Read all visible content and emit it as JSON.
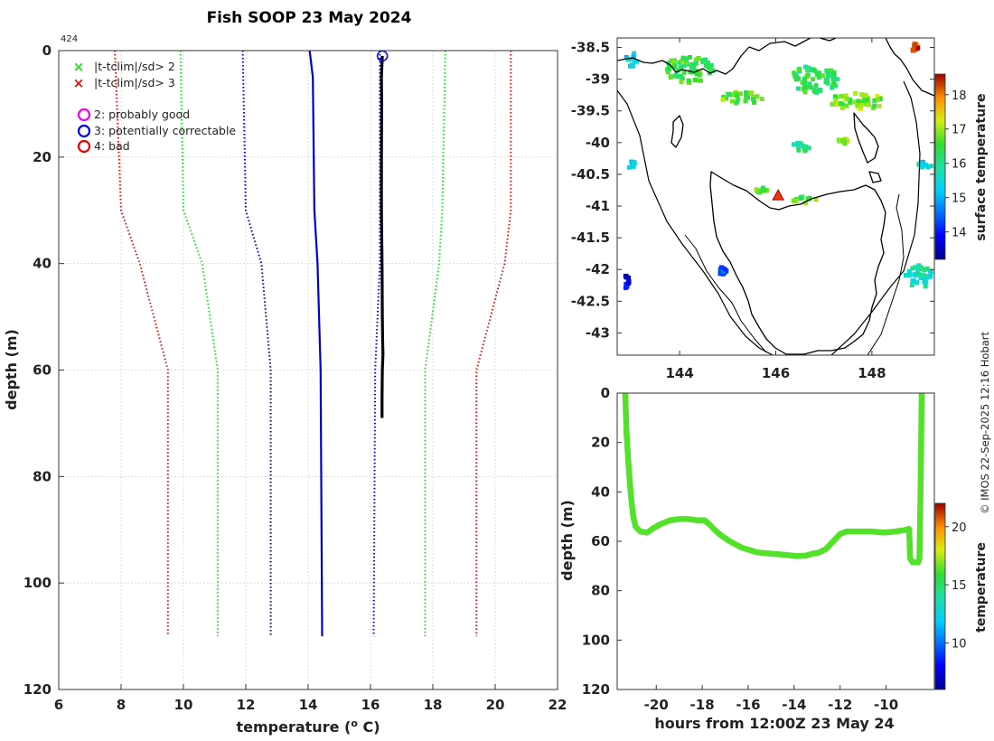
{
  "title": "Fish SOOP 23 May 2024",
  "profile_id": "424",
  "credit": "© IMOS 22-Sep-2025 12:16 Hobart",
  "colors": {
    "sd2_green": "#22dd22",
    "sd3_red": "#dd1111",
    "clim_blue": "#0000cc",
    "profile_black": "#000000",
    "track_yellow": "#e6ee10",
    "probably_good": "#ee00ee",
    "potentially_correctable": "#0000ee",
    "bad": "#ee0000"
  },
  "legend": {
    "sd2_label": "|t-tclim|/sd> 2",
    "sd3_label": "|t-tclim|/sd> 3",
    "flag2_label": "2: probably good",
    "flag3_label": "3: potentially correctable",
    "flag4_label": "4: bad"
  },
  "chart_data": [
    {
      "type": "line",
      "name": "profile",
      "xlabel": "temperature (o C)",
      "xlabel_base": "temperature (",
      "xlabel_sup": "o",
      "xlabel_end": " C)",
      "ylabel": "depth (m)",
      "xlim": [
        6,
        22
      ],
      "ylim": [
        120,
        0
      ],
      "xticks": [
        "6",
        "8",
        "10",
        "12",
        "14",
        "16",
        "18",
        "20",
        "22"
      ],
      "yticks": [
        "0",
        "20",
        "40",
        "60",
        "80",
        "100",
        "120"
      ],
      "grid": true,
      "series": [
        {
          "name": "clim - 3sd",
          "style": "dotted",
          "color": "red",
          "depth": [
            0,
            30,
            40,
            60,
            110
          ],
          "temp": [
            7.8,
            8.0,
            8.6,
            9.5,
            9.5
          ]
        },
        {
          "name": "clim - 2sd",
          "style": "dotted",
          "color": "green",
          "depth": [
            0,
            30,
            40,
            60,
            110
          ],
          "temp": [
            9.9,
            10.0,
            10.6,
            11.1,
            11.1
          ]
        },
        {
          "name": "clim - 1sd",
          "style": "dotted",
          "color": "blue",
          "depth": [
            0,
            30,
            40,
            60,
            110
          ],
          "temp": [
            11.9,
            12.0,
            12.5,
            12.8,
            12.8
          ]
        },
        {
          "name": "climatology mean",
          "style": "solid",
          "color": "blue",
          "depth": [
            0,
            5,
            30,
            40,
            60,
            110
          ],
          "temp": [
            14.05,
            14.15,
            14.2,
            14.3,
            14.4,
            14.45
          ]
        },
        {
          "name": "clim + 1sd",
          "style": "dotted",
          "color": "blue",
          "depth": [
            0,
            30,
            40,
            60,
            110
          ],
          "temp": [
            16.3,
            16.3,
            16.3,
            16.15,
            16.1
          ]
        },
        {
          "name": "clim + 2sd",
          "style": "dotted",
          "color": "green",
          "depth": [
            0,
            30,
            40,
            60,
            110
          ],
          "temp": [
            18.4,
            18.3,
            18.2,
            17.75,
            17.75
          ]
        },
        {
          "name": "clim + 3sd",
          "style": "dotted",
          "color": "red",
          "depth": [
            0,
            30,
            40,
            60,
            110
          ],
          "temp": [
            20.5,
            20.5,
            20.3,
            19.4,
            19.4
          ]
        },
        {
          "name": "observed profile",
          "style": "solid",
          "color": "black",
          "depth": [
            1,
            5,
            10,
            20,
            30,
            40,
            50,
            55,
            57,
            60,
            65,
            69
          ],
          "temp": [
            16.38,
            16.35,
            16.36,
            16.35,
            16.35,
            16.37,
            16.38,
            16.39,
            16.4,
            16.38,
            16.37,
            16.37
          ]
        }
      ],
      "markers": [
        {
          "name": "flag 3 start",
          "shape": "circle",
          "color": "blue",
          "temp": 16.38,
          "depth": 1
        }
      ]
    },
    {
      "type": "map",
      "name": "sst-map",
      "colorbar_label": "surface temperature",
      "colorbar_range": [
        13.2,
        18.6
      ],
      "colorbar_ticks": [
        "14",
        "15",
        "16",
        "17",
        "18"
      ],
      "xlim": [
        142.7,
        149.3
      ],
      "ylim": [
        -43.35,
        -38.35
      ],
      "xticks": [
        "144",
        "146",
        "148"
      ],
      "yticks": [
        "-38.5",
        "-39",
        "-39.5",
        "-40",
        "-40.5",
        "-41",
        "-41.5",
        "-42",
        "-42.5",
        "-43"
      ],
      "xtick_values": [
        144,
        146,
        148
      ],
      "ytick_values": [
        -38.5,
        -39,
        -39.5,
        -40,
        -40.5,
        -41,
        -41.5,
        -42,
        -42.5,
        -43
      ],
      "profile_location": {
        "lon": 146.05,
        "lat": -40.83
      },
      "sst_patches": [
        {
          "lon": 146.8,
          "lat": -39.0,
          "rx": 0.5,
          "ry": 0.22,
          "temp": 16.3
        },
        {
          "lon": 147.7,
          "lat": -39.35,
          "rx": 0.6,
          "ry": 0.13,
          "temp": 16.8
        },
        {
          "lon": 144.2,
          "lat": -38.85,
          "rx": 0.5,
          "ry": 0.22,
          "temp": 16.5
        },
        {
          "lon": 145.3,
          "lat": -39.3,
          "rx": 0.45,
          "ry": 0.1,
          "temp": 16.7
        },
        {
          "lon": 146.5,
          "lat": -40.07,
          "rx": 0.2,
          "ry": 0.07,
          "temp": 16.0
        },
        {
          "lon": 147.4,
          "lat": -39.97,
          "rx": 0.1,
          "ry": 0.05,
          "temp": 16.9
        },
        {
          "lon": 146.6,
          "lat": -40.9,
          "rx": 0.28,
          "ry": 0.05,
          "temp": 16.6
        },
        {
          "lon": 145.7,
          "lat": -40.75,
          "rx": 0.12,
          "ry": 0.04,
          "temp": 16.7
        },
        {
          "lon": 149.0,
          "lat": -42.1,
          "rx": 0.3,
          "ry": 0.18,
          "temp": 15.8
        },
        {
          "lon": 144.9,
          "lat": -42.05,
          "rx": 0.08,
          "ry": 0.12,
          "temp": 14.3
        },
        {
          "lon": 143.0,
          "lat": -38.7,
          "rx": 0.12,
          "ry": 0.12,
          "temp": 15.4
        },
        {
          "lon": 143.0,
          "lat": -40.35,
          "rx": 0.08,
          "ry": 0.06,
          "temp": 15.3
        },
        {
          "lon": 142.9,
          "lat": -42.2,
          "rx": 0.06,
          "ry": 0.12,
          "temp": 13.8
        },
        {
          "lon": 148.9,
          "lat": -38.5,
          "rx": 0.06,
          "ry": 0.07,
          "temp": 18.2
        },
        {
          "lon": 149.1,
          "lat": -40.35,
          "rx": 0.15,
          "ry": 0.05,
          "temp": 15.4
        }
      ]
    },
    {
      "type": "line",
      "name": "depth-track",
      "xlabel": "hours from 12:00Z 23 May 24",
      "ylabel": "depth (m)",
      "xlim": [
        -21.7,
        -7.9
      ],
      "ylim": [
        120,
        0
      ],
      "xticks": [
        "-20",
        "-18",
        "-16",
        "-14",
        "-12",
        "-10"
      ],
      "xtick_values": [
        -20,
        -18,
        -16,
        -14,
        -12,
        -10
      ],
      "yticks": [
        "0",
        "20",
        "40",
        "60",
        "80",
        "100",
        "120"
      ],
      "ytick_values": [
        0,
        20,
        40,
        60,
        80,
        100,
        120
      ],
      "colorbar_label": "temperature",
      "colorbar_range": [
        6,
        22
      ],
      "colorbar_ticks": [
        "10",
        "15",
        "20"
      ],
      "colorbar_tick_values": [
        10,
        15,
        20
      ],
      "series_temperature": 16.35,
      "x": [
        -21.35,
        -21.3,
        -21.2,
        -21.1,
        -21.0,
        -20.9,
        -20.7,
        -20.4,
        -20.1,
        -19.8,
        -19.4,
        -19.0,
        -18.6,
        -18.2,
        -17.9,
        -17.7,
        -17.5,
        -17.2,
        -16.8,
        -16.3,
        -15.6,
        -15.0,
        -14.4,
        -13.9,
        -13.5,
        -13.2,
        -12.9,
        -12.6,
        -12.4,
        -12.2,
        -12.0,
        -11.7,
        -11.2,
        -10.6,
        -10.1,
        -9.6,
        -9.2,
        -9.0,
        -8.95,
        -8.85,
        -8.6,
        -8.55,
        -8.5,
        -8.45
      ],
      "y": [
        0,
        15,
        30,
        42,
        50,
        54,
        56,
        56.5,
        54.5,
        53,
        51.5,
        51,
        51,
        51.5,
        51.5,
        53,
        55,
        57.5,
        60,
        62.5,
        64.5,
        65,
        65.5,
        66,
        65.8,
        65,
        64.5,
        63,
        61,
        59,
        57,
        56,
        56,
        56,
        56.5,
        56,
        55.5,
        55,
        67,
        68.5,
        68.5,
        67,
        40,
        0
      ]
    }
  ]
}
